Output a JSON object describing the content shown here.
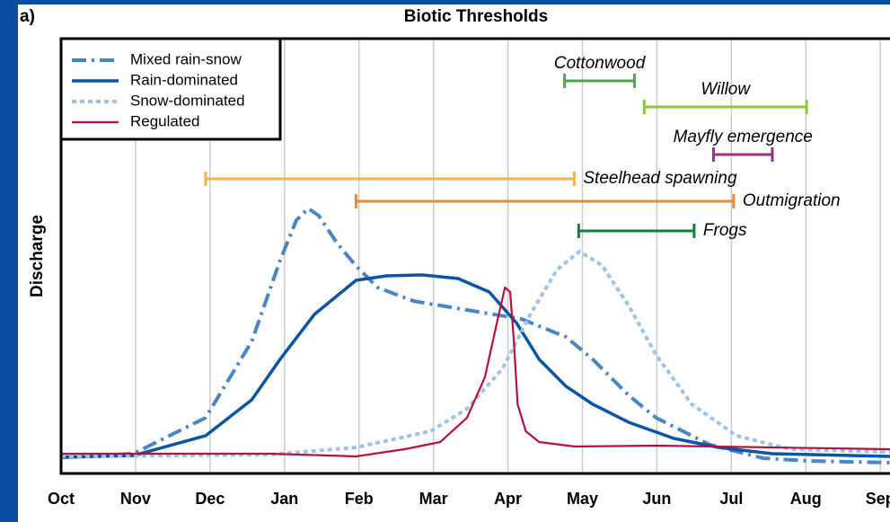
{
  "chart_data": {
    "type": "line",
    "panel_label": "a)",
    "title": "Biotic Thresholds",
    "y_label": "Discharge",
    "xlim": [
      0,
      11.13
    ],
    "ylim": [
      0,
      100
    ],
    "grid": true,
    "legend_position": "upper left",
    "xticks": [
      {
        "value": 0,
        "label": "Oct"
      },
      {
        "value": 1,
        "label": "Nov"
      },
      {
        "value": 2,
        "label": "Dec"
      },
      {
        "value": 3,
        "label": "Jan"
      },
      {
        "value": 4,
        "label": "Feb"
      },
      {
        "value": 5,
        "label": "Mar"
      },
      {
        "value": 6,
        "label": "Apr"
      },
      {
        "value": 7,
        "label": "May"
      },
      {
        "value": 8,
        "label": "Jun"
      },
      {
        "value": 9,
        "label": "Jul"
      },
      {
        "value": 10,
        "label": "Aug"
      },
      {
        "value": 11,
        "label": "Sep"
      }
    ],
    "series": [
      {
        "name": "Mixed rain-snow",
        "color": "#4a86c5",
        "style": "dashdot",
        "x": [
          0,
          0.97,
          1.94,
          2.56,
          2.94,
          3.16,
          3.32,
          3.46,
          3.7,
          3.96,
          4.25,
          4.73,
          5.45,
          6.18,
          6.78,
          7.14,
          7.62,
          7.99,
          8.71,
          9.43,
          10.04,
          11.13
        ],
        "values": [
          3.72,
          4.55,
          12.81,
          30.37,
          48.97,
          58.26,
          60.95,
          59.3,
          53.1,
          47.73,
          42.77,
          39.67,
          37.6,
          35.54,
          31.4,
          26.24,
          17.98,
          12.81,
          6.61,
          3.51,
          2.89,
          2.48
        ]
      },
      {
        "name": "Rain-dominated",
        "color": "#0a55a4",
        "style": "solid",
        "x": [
          0,
          0.97,
          1.94,
          2.56,
          2.94,
          3.4,
          3.96,
          4.37,
          4.85,
          5.33,
          5.75,
          6.12,
          6.42,
          6.78,
          7.14,
          7.62,
          8.23,
          8.83,
          9.55,
          11.13
        ],
        "values": [
          3.72,
          4.13,
          8.68,
          16.94,
          26.24,
          36.57,
          44.42,
          45.45,
          45.66,
          44.83,
          41.74,
          34.5,
          26.24,
          20.04,
          15.91,
          11.78,
          8.06,
          5.99,
          4.55,
          3.93
        ]
      },
      {
        "name": "Snow-dominated",
        "color": "#9dc3e6",
        "style": "dotted",
        "x": [
          0,
          2.8,
          3.96,
          4.96,
          5.45,
          5.93,
          6.3,
          6.66,
          6.96,
          7.26,
          7.62,
          7.99,
          8.47,
          9.07,
          9.79,
          11.13
        ],
        "values": [
          3.93,
          4.34,
          5.99,
          9.71,
          14.88,
          24.17,
          36.57,
          46.9,
          51.03,
          47.93,
          38.64,
          27.27,
          15.91,
          8.68,
          5.58,
          4.96
        ]
      },
      {
        "name": "Regulated",
        "color": "#b5123e",
        "style": "thin",
        "x": [
          0,
          2.8,
          3.96,
          4.61,
          5.09,
          5.45,
          5.69,
          5.85,
          5.96,
          6.03,
          6.08,
          6.13,
          6.24,
          6.42,
          6.9,
          7.99,
          11.13
        ],
        "values": [
          4.55,
          4.55,
          3.93,
          5.58,
          7.23,
          12.81,
          22.11,
          34.5,
          42.77,
          41.74,
          30.37,
          15.91,
          9.71,
          7.23,
          6.2,
          6.4,
          5.58
        ]
      }
    ],
    "ranges": [
      {
        "label": "Cottonwood",
        "color": "#4ea84a",
        "start": 6.76,
        "end": 7.7,
        "y": 90.29,
        "label_position": "above"
      },
      {
        "label": "Willow",
        "color": "#8dc63f",
        "start": 7.83,
        "end": 10.01,
        "y": 84.3,
        "label_position": "above"
      },
      {
        "label": "Mayfly emergence",
        "color": "#9b2f8f",
        "start": 8.76,
        "end": 9.55,
        "y": 73.35,
        "label_position": "above"
      },
      {
        "label": "Steelhead spawning",
        "color": "#f9b24e",
        "start": 1.94,
        "end": 6.89,
        "y": 67.77,
        "label_position": "right"
      },
      {
        "label": "Outmigration",
        "color": "#ef8a2a",
        "start": 3.96,
        "end": 9.03,
        "y": 62.6,
        "label_position": "right"
      },
      {
        "label": "Frogs",
        "color": "#1a7a3e",
        "start": 6.95,
        "end": 8.5,
        "y": 55.79,
        "label_position": "right"
      }
    ]
  }
}
